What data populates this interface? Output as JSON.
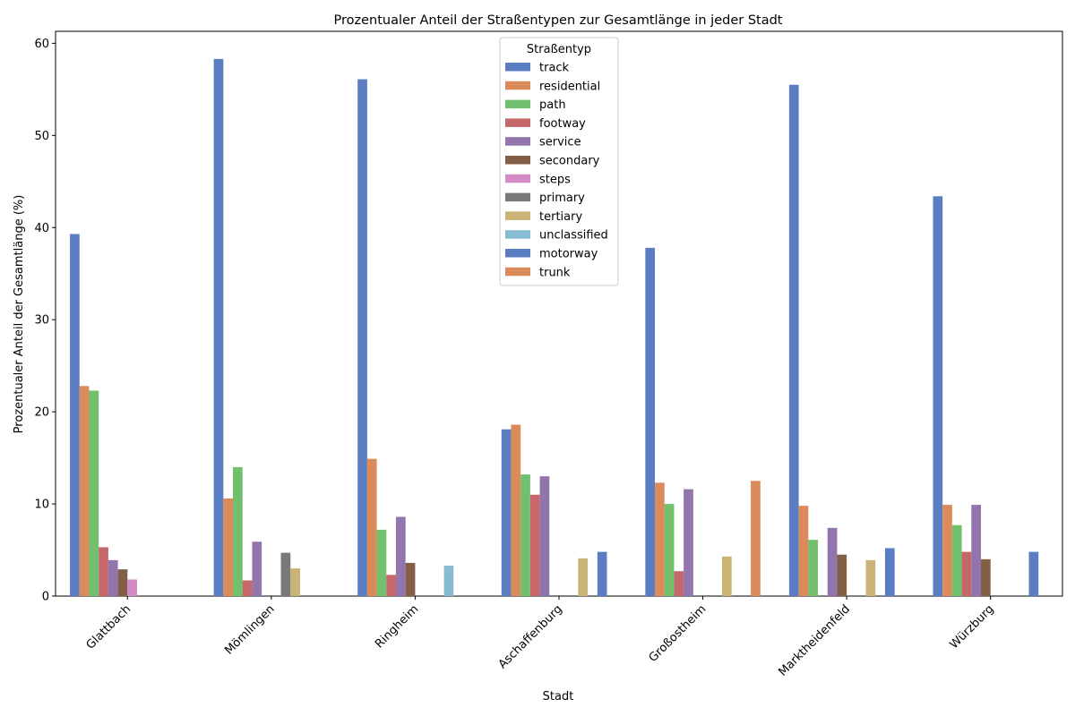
{
  "chart_data": {
    "type": "bar",
    "title": "Prozentualer Anteil der Straßentypen zur Gesamtlänge in jeder Stadt",
    "xlabel": "Stadt",
    "ylabel": "Prozentualer Anteil der Gesamtlänge (%)",
    "ylim": [
      0,
      61.3
    ],
    "yticks": [
      0,
      10,
      20,
      30,
      40,
      50,
      60
    ],
    "legend_title": "Straßentyp",
    "legend_position": "top-center",
    "grid": false,
    "categories": [
      "Glattbach",
      "Mömlingen",
      "Ringheim",
      "Aschaffenburg",
      "Großostheim",
      "Marktheidenfeld",
      "Würzburg"
    ],
    "series": [
      {
        "name": "track",
        "color": "#5b7ec2",
        "values": [
          39.3,
          58.3,
          56.1,
          18.1,
          37.8,
          55.5,
          43.4
        ]
      },
      {
        "name": "residential",
        "color": "#db8a5a",
        "values": [
          22.8,
          10.6,
          14.9,
          18.6,
          12.3,
          9.8,
          9.9
        ]
      },
      {
        "name": "path",
        "color": "#72bf6d",
        "values": [
          22.3,
          14.0,
          7.2,
          13.2,
          10.0,
          6.1,
          7.7
        ]
      },
      {
        "name": "footway",
        "color": "#c6676a",
        "values": [
          5.3,
          1.7,
          2.3,
          11.0,
          2.7,
          0,
          4.8
        ]
      },
      {
        "name": "service",
        "color": "#9375ae",
        "values": [
          3.9,
          5.9,
          8.6,
          13.0,
          11.6,
          7.4,
          9.9
        ]
      },
      {
        "name": "secondary",
        "color": "#825f46",
        "values": [
          2.9,
          0,
          3.6,
          0,
          0,
          4.5,
          4.0
        ]
      },
      {
        "name": "steps",
        "color": "#d48ac4",
        "values": [
          1.8,
          0,
          0,
          0,
          0,
          0,
          0
        ]
      },
      {
        "name": "primary",
        "color": "#797979",
        "values": [
          0,
          4.7,
          0,
          0,
          0,
          0,
          0
        ]
      },
      {
        "name": "tertiary",
        "color": "#c9b475",
        "values": [
          0,
          3.0,
          0,
          4.1,
          4.3,
          3.9,
          0
        ]
      },
      {
        "name": "unclassified",
        "color": "#86bcd1",
        "values": [
          0,
          0,
          3.3,
          0,
          0,
          0,
          0
        ]
      },
      {
        "name": "motorway",
        "color": "#5b7ec2",
        "values": [
          0,
          0,
          0,
          4.8,
          0,
          5.2,
          4.8
        ]
      },
      {
        "name": "trunk",
        "color": "#db8a5a",
        "values": [
          0,
          0,
          0,
          0,
          12.5,
          0,
          0
        ]
      }
    ]
  }
}
